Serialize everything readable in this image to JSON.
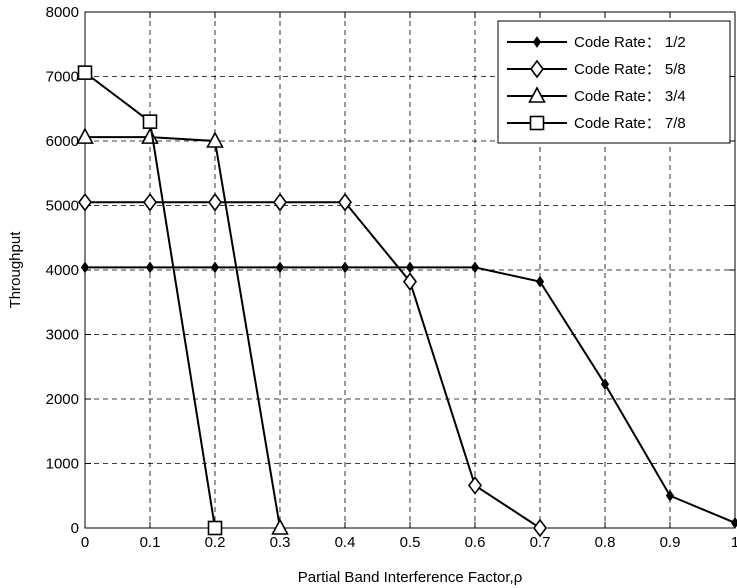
{
  "chart_data": {
    "type": "line",
    "xlabel": "Partial Band Interference Factor,ρ",
    "ylabel": "Throughput",
    "xlim": [
      0,
      1
    ],
    "ylim": [
      0,
      8000
    ],
    "x_ticks": [
      "0",
      "0.1",
      "0.2",
      "0.3",
      "0.4",
      "0.5",
      "0.6",
      "0.7",
      "0.8",
      "0.9",
      "1"
    ],
    "y_ticks": [
      "0",
      "1000",
      "2000",
      "3000",
      "4000",
      "5000",
      "6000",
      "7000",
      "8000"
    ],
    "grid": true,
    "legend_position": "top-right",
    "series": [
      {
        "name": "Code Rate： 1/2",
        "marker": "dot",
        "x": [
          0,
          0.1,
          0.2,
          0.3,
          0.4,
          0.5,
          0.6,
          0.7,
          0.8,
          0.9,
          1.0
        ],
        "y": [
          4040,
          4040,
          4040,
          4040,
          4040,
          4040,
          4040,
          3820,
          2230,
          500,
          80
        ]
      },
      {
        "name": "Code Rate： 5/8",
        "marker": "diamond",
        "x": [
          0,
          0.1,
          0.2,
          0.3,
          0.4,
          0.5,
          0.6,
          0.7
        ],
        "y": [
          5050,
          5050,
          5050,
          5050,
          5050,
          3820,
          660,
          0
        ]
      },
      {
        "name": "Code Rate： 3/4",
        "marker": "triangle",
        "x": [
          0,
          0.1,
          0.2,
          0.3
        ],
        "y": [
          6060,
          6060,
          6000,
          0
        ]
      },
      {
        "name": "Code Rate： 7/8",
        "marker": "square",
        "x": [
          0,
          0.1,
          0.2
        ],
        "y": [
          7060,
          6300,
          0
        ]
      }
    ]
  }
}
